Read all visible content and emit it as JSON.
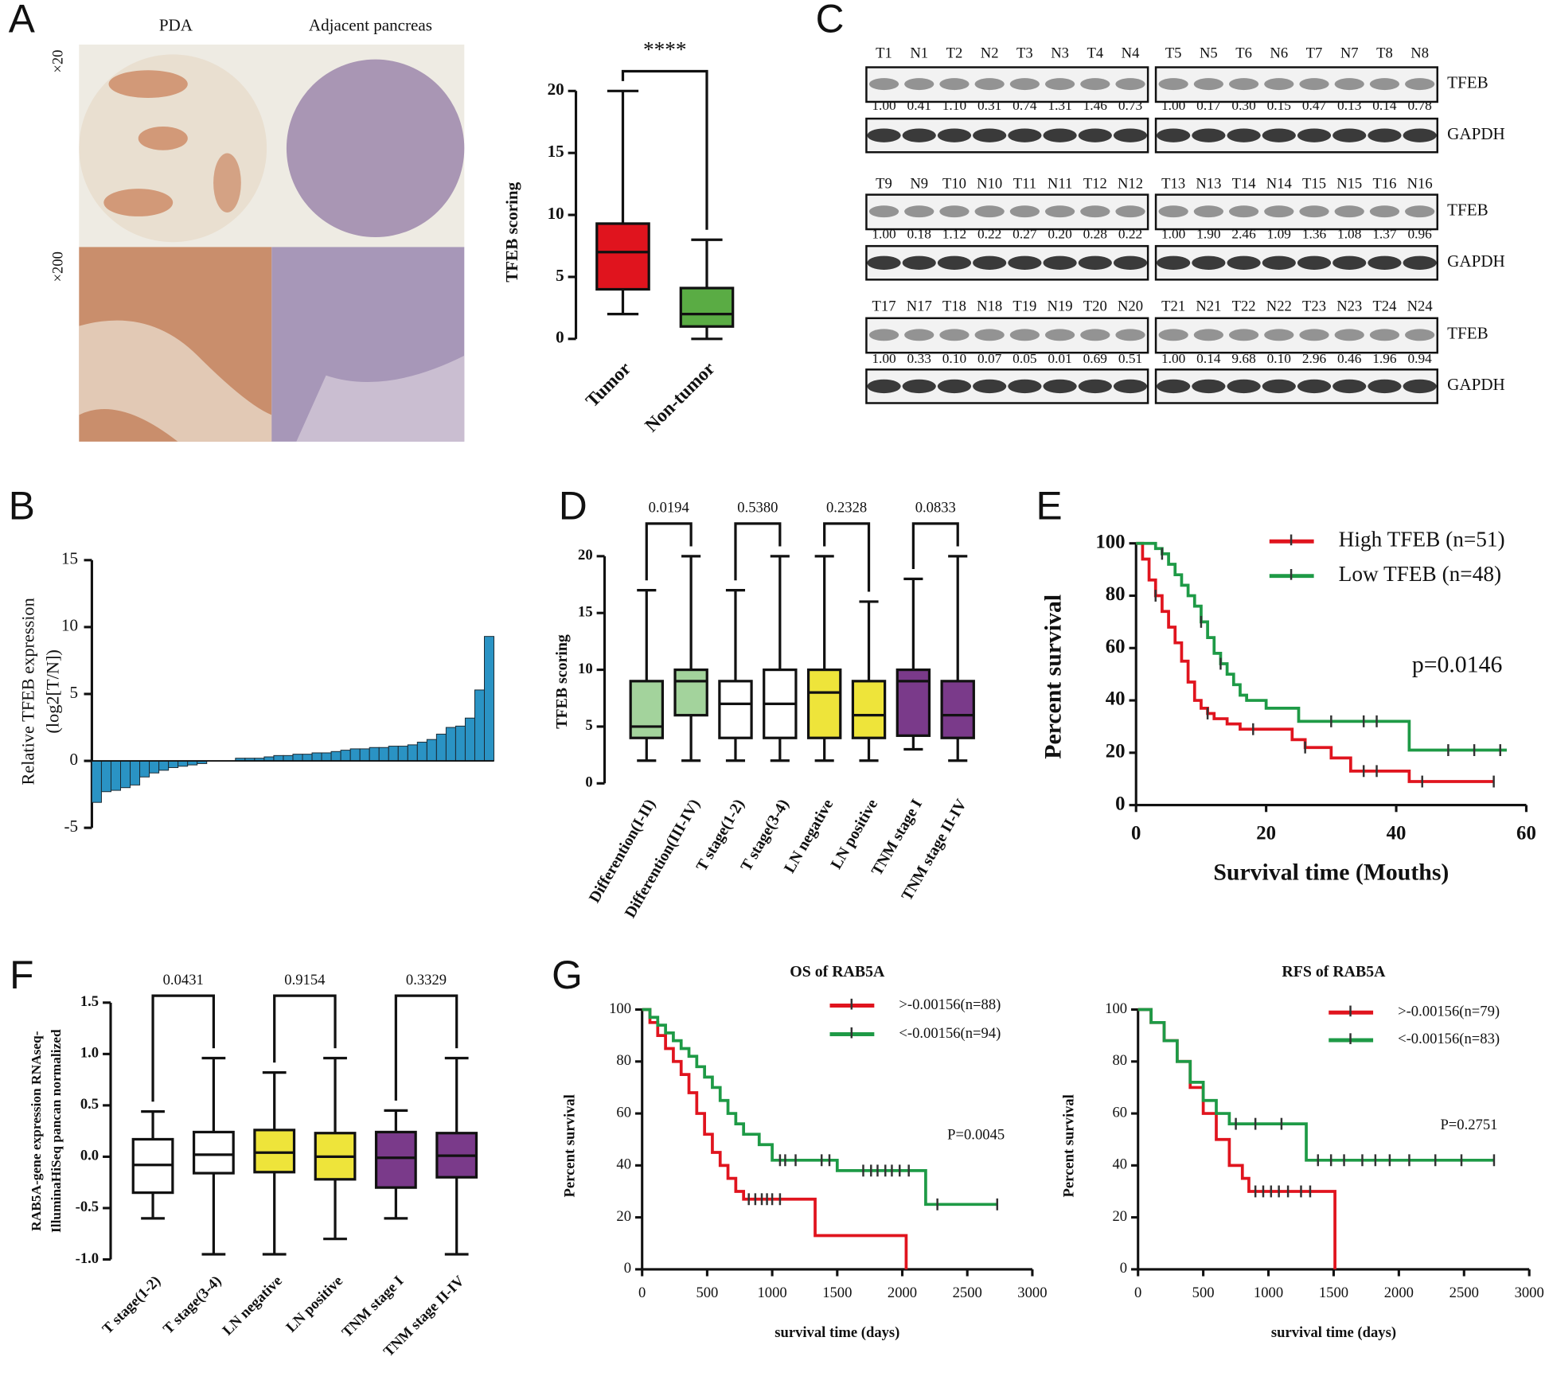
{
  "panel_labels": [
    "A",
    "B",
    "C",
    "D",
    "E",
    "F",
    "G"
  ],
  "panel_a": {
    "columns": [
      "PDA",
      "Adjacent pancreas"
    ],
    "rows": [
      "×20",
      "×200"
    ]
  },
  "western_blot": {
    "tfeb_label": "TFEB",
    "gapdh_label": "GAPDH",
    "rows": [
      {
        "lanes": [
          "T1",
          "N1",
          "T2",
          "N2",
          "T3",
          "N3",
          "T4",
          "N4",
          "T5",
          "N5",
          "T6",
          "N6",
          "T7",
          "N7",
          "T8",
          "N8"
        ],
        "tfeb": [
          "1.00",
          "0.41",
          "1.10",
          "0.31",
          "0.74",
          "1.31",
          "1.46",
          "0.73",
          "1.00",
          "0.17",
          "0.30",
          "0.15",
          "0.47",
          "0.13",
          "0.14",
          "0.78"
        ]
      },
      {
        "lanes": [
          "T9",
          "N9",
          "T10",
          "N10",
          "T11",
          "N11",
          "T12",
          "N12",
          "T13",
          "N13",
          "T14",
          "N14",
          "T15",
          "N15",
          "T16",
          "N16"
        ],
        "tfeb": [
          "1.00",
          "0.18",
          "1.12",
          "0.22",
          "0.27",
          "0.20",
          "0.28",
          "0.22",
          "1.00",
          "1.90",
          "2.46",
          "1.09",
          "1.36",
          "1.08",
          "1.37",
          "0.96"
        ]
      },
      {
        "lanes": [
          "T17",
          "N17",
          "T18",
          "N18",
          "T19",
          "N19",
          "T20",
          "N20",
          "T21",
          "N21",
          "T22",
          "N22",
          "T23",
          "N23",
          "T24",
          "N24"
        ],
        "tfeb": [
          "1.00",
          "0.33",
          "0.10",
          "0.07",
          "0.05",
          "0.01",
          "0.69",
          "0.51",
          "1.00",
          "0.14",
          "9.68",
          "0.10",
          "2.96",
          "0.46",
          "1.96",
          "0.94"
        ]
      }
    ]
  },
  "chart_data": [
    {
      "type": "box",
      "ylabel": "TFEB scoring",
      "categories": [
        "Tumor",
        "Non-tumor"
      ],
      "min": [
        2,
        0
      ],
      "q1": [
        4,
        1
      ],
      "median": [
        7,
        2
      ],
      "q3": [
        9.3,
        4.1
      ],
      "max": [
        20,
        8
      ],
      "colors": [
        "#e0141e",
        "#5aac44"
      ],
      "ylim": [
        0,
        20
      ],
      "yticks": [
        0,
        5,
        10,
        15,
        20
      ],
      "comparisons": [
        "****"
      ]
    },
    {
      "type": "bar",
      "ylabel": [
        "Relative TFEB expression",
        "(log2[T/N])"
      ],
      "values": [
        -3.1,
        -2.3,
        -2.2,
        -2.0,
        -1.8,
        -1.2,
        -0.9,
        -0.7,
        -0.5,
        -0.4,
        -0.3,
        -0.2,
        0,
        0,
        0,
        0.2,
        0.2,
        0.2,
        0.3,
        0.4,
        0.4,
        0.5,
        0.5,
        0.6,
        0.6,
        0.7,
        0.8,
        0.9,
        0.9,
        1.0,
        1.0,
        1.1,
        1.1,
        1.2,
        1.4,
        1.6,
        2.0,
        2.5,
        2.6,
        3.2,
        5.3,
        9.3
      ],
      "color": "#2a93c4",
      "ylim": [
        -5,
        15
      ],
      "yticks": [
        -5,
        0,
        5,
        10,
        15
      ]
    },
    {
      "type": "box",
      "ylabel": "TFEB scoring",
      "categories": [
        "Differention(I-II)",
        "Differention(III-IV)",
        "T stage(1-2)",
        "T stage(3-4)",
        "LN negative",
        "LN positive",
        "TNM stage I",
        "TNM stage II-IV"
      ],
      "min": [
        2,
        2,
        2,
        2,
        2,
        2,
        3,
        2
      ],
      "q1": [
        4,
        6,
        4,
        4,
        4,
        4,
        4.2,
        4
      ],
      "median": [
        5,
        9,
        7,
        7,
        8,
        6,
        9,
        6
      ],
      "q3": [
        9,
        10,
        9,
        10,
        10,
        9,
        10,
        9
      ],
      "max": [
        17,
        20,
        17,
        20,
        20,
        16,
        18,
        20
      ],
      "colors": [
        "#a3d39c",
        "#a3d39c",
        "#ffffff",
        "#ffffff",
        "#eee43a",
        "#eee43a",
        "#7a3a8a",
        "#7a3a8a"
      ],
      "ylim": [
        0,
        20
      ],
      "yticks": [
        0,
        5,
        10,
        15,
        20
      ],
      "comparisons": [
        "0.0194",
        "0.5380",
        "0.2328",
        "0.0833"
      ]
    },
    {
      "type": "survival",
      "xlabel": "Survival time (Mouths)",
      "ylabel": "Percent survival",
      "xlim": [
        0,
        60
      ],
      "xticks": [
        0,
        20,
        40,
        60
      ],
      "ylim": [
        0,
        100
      ],
      "yticks": [
        0,
        20,
        40,
        60,
        80,
        100
      ],
      "annotation": "p=0.0146",
      "series": [
        {
          "name": "High TFEB (n=51)",
          "color": "#e0141e",
          "x": [
            0,
            1,
            2,
            3,
            4,
            5,
            6,
            7,
            8,
            9,
            10,
            11,
            12,
            14,
            16,
            18,
            24,
            26,
            30,
            33,
            42,
            55
          ],
          "values": [
            100,
            94,
            86,
            80,
            74,
            68,
            62,
            55,
            47,
            40,
            37,
            35,
            33,
            31,
            29,
            29,
            25,
            22,
            18,
            13,
            9,
            9
          ],
          "censor_x": [
            3,
            11,
            18,
            26,
            35,
            37,
            44,
            55
          ],
          "censor_y": [
            80,
            35,
            29,
            22,
            13,
            13,
            9,
            9
          ]
        },
        {
          "name": "Low TFEB (n=48)",
          "color": "#1e9a46",
          "x": [
            0,
            3,
            4,
            5,
            6,
            7,
            8,
            9,
            10,
            11,
            12,
            13,
            14,
            15,
            16,
            17,
            20,
            25,
            34,
            42,
            44,
            57
          ],
          "values": [
            100,
            98,
            96,
            92,
            88,
            84,
            80,
            76,
            70,
            64,
            58,
            54,
            50,
            46,
            42,
            40,
            37,
            32,
            32,
            21,
            21,
            21
          ],
          "censor_x": [
            4,
            10,
            13,
            30,
            35,
            37,
            48,
            52,
            56
          ],
          "censor_y": [
            96,
            70,
            54,
            32,
            32,
            32,
            21,
            21,
            21
          ]
        }
      ]
    },
    {
      "type": "box",
      "ylabel": [
        "RAB5A-gene expression RNAseq-",
        "IlluminaHiSeq  pancan normalized"
      ],
      "categories": [
        "T stage(1-2)",
        "T stage(3-4)",
        "LN negative",
        "LN positive",
        "TNM stage I",
        "TNM stage II-IV"
      ],
      "min": [
        -0.6,
        -0.95,
        -0.95,
        -0.8,
        -0.6,
        -0.95
      ],
      "q1": [
        -0.35,
        -0.16,
        -0.15,
        -0.22,
        -0.3,
        -0.2
      ],
      "median": [
        -0.08,
        0.02,
        0.04,
        0.0,
        -0.01,
        0.01
      ],
      "q3": [
        0.17,
        0.24,
        0.26,
        0.23,
        0.24,
        0.23
      ],
      "max": [
        0.44,
        0.96,
        0.82,
        0.96,
        0.45,
        0.96
      ],
      "colors": [
        "#ffffff",
        "#ffffff",
        "#eee43a",
        "#eee43a",
        "#7a3a8a",
        "#7a3a8a"
      ],
      "ylim": [
        -1,
        1.5
      ],
      "yticks": [
        {
          "value": -1,
          "label": "-1.0"
        },
        -0.5,
        {
          "value": 0,
          "label": "0.0"
        },
        0.5,
        {
          "value": 1,
          "label": "1.0"
        },
        1.5
      ],
      "comparisons": [
        "0.0431",
        "0.9154",
        "0.3329"
      ]
    },
    {
      "type": "survival",
      "title": "OS of RAB5A",
      "xlabel": "survival time (days)",
      "ylabel": "Percent survival",
      "xlim": [
        0,
        3000
      ],
      "xticks": [
        0,
        500,
        1000,
        1500,
        2000,
        2500,
        3000
      ],
      "ylim": [
        0,
        100
      ],
      "yticks": [
        0,
        20,
        40,
        60,
        80,
        100
      ],
      "annotation": "P=0.0045",
      "series": [
        {
          "name": ">-0.00156(n=88)",
          "color": "#e0141e",
          "x": [
            0,
            60,
            120,
            180,
            240,
            300,
            360,
            420,
            480,
            540,
            600,
            660,
            720,
            780,
            1330,
            2030
          ],
          "values": [
            100,
            95,
            90,
            85,
            80,
            75,
            68,
            60,
            52,
            45,
            40,
            35,
            30,
            27,
            13,
            0
          ],
          "censor_x": [
            820,
            870,
            920,
            960,
            1000,
            1060
          ],
          "censor_y": [
            27,
            27,
            27,
            27,
            27,
            27
          ]
        },
        {
          "name": "<-0.00156(n=94)",
          "color": "#1e9a46",
          "x": [
            0,
            60,
            120,
            180,
            240,
            300,
            360,
            420,
            480,
            540,
            600,
            660,
            720,
            780,
            900,
            1000,
            1500,
            2180,
            2730
          ],
          "values": [
            100,
            97,
            94,
            91,
            88,
            85,
            82,
            78,
            74,
            70,
            65,
            60,
            56,
            52,
            48,
            42,
            38,
            25,
            25
          ],
          "censor_x": [
            1060,
            1100,
            1180,
            1380,
            1440,
            1700,
            1760,
            1810,
            1870,
            1920,
            1980,
            2050,
            2270,
            2730
          ],
          "censor_y": [
            42,
            42,
            42,
            42,
            42,
            38,
            38,
            38,
            38,
            38,
            38,
            38,
            25,
            25
          ]
        }
      ]
    },
    {
      "type": "survival",
      "title": "RFS of RAB5A",
      "xlabel": "survival time (days)",
      "ylabel": "Percent survival",
      "xlim": [
        0,
        3000
      ],
      "xticks": [
        0,
        500,
        1000,
        1500,
        2000,
        2500,
        3000
      ],
      "ylim": [
        0,
        100
      ],
      "yticks": [
        0,
        20,
        40,
        60,
        80,
        100
      ],
      "annotation": "P=0.2751",
      "series": [
        {
          "name": ">-0.00156(n=79)",
          "color": "#e0141e",
          "x": [
            0,
            100,
            200,
            300,
            400,
            500,
            600,
            700,
            800,
            850,
            1510
          ],
          "values": [
            100,
            95,
            88,
            80,
            70,
            60,
            50,
            40,
            35,
            30,
            0
          ],
          "censor_x": [
            900,
            960,
            1020,
            1080,
            1150,
            1250,
            1320
          ],
          "censor_y": [
            30,
            30,
            30,
            30,
            30,
            30,
            30
          ]
        },
        {
          "name": "<-0.00156(n=83)",
          "color": "#1e9a46",
          "x": [
            0,
            100,
            200,
            300,
            400,
            500,
            600,
            700,
            1290,
            2730
          ],
          "values": [
            100,
            95,
            88,
            80,
            72,
            65,
            60,
            56,
            42,
            42
          ],
          "censor_x": [
            750,
            900,
            1100,
            1380,
            1480,
            1580,
            1720,
            1820,
            1930,
            2080,
            2280,
            2480,
            2730
          ],
          "censor_y": [
            56,
            56,
            56,
            42,
            42,
            42,
            42,
            42,
            42,
            42,
            42,
            42,
            42
          ]
        }
      ]
    }
  ]
}
